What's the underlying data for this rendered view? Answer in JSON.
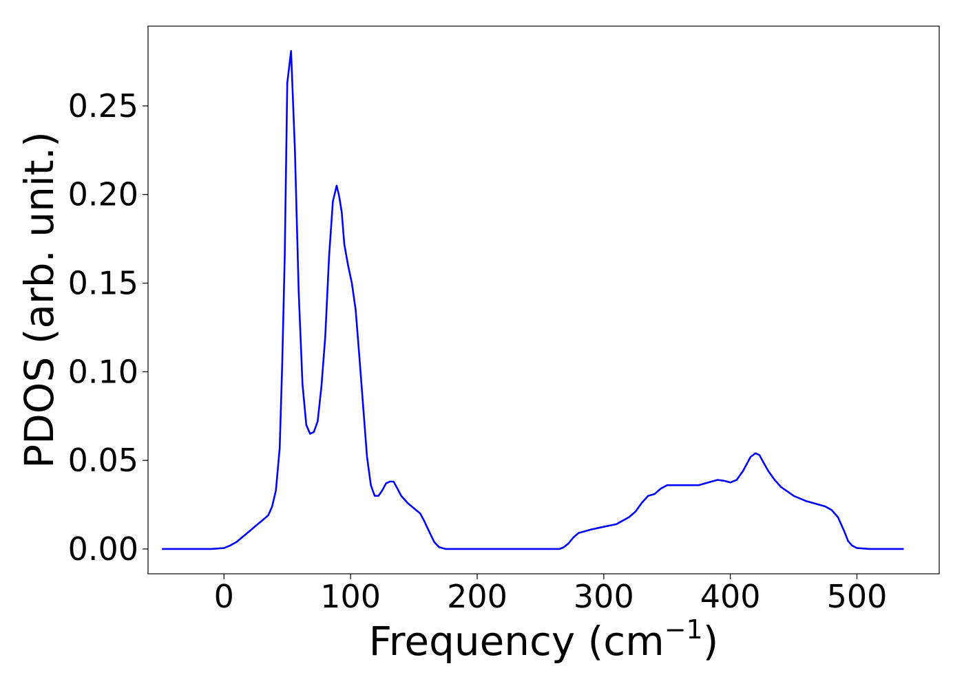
{
  "chart_data": {
    "type": "line",
    "title": "",
    "xlabel": "Frequency (cm",
    "xlabel_sup": "−1",
    "xlabel_close": ")",
    "ylabel": "PDOS (arb. unit.)",
    "xlim": [
      -60,
      565
    ],
    "ylim": [
      -0.014,
      0.295
    ],
    "xticks": [
      0,
      100,
      200,
      300,
      400,
      500
    ],
    "xtick_labels": [
      "0",
      "100",
      "200",
      "300",
      "400",
      "500"
    ],
    "yticks": [
      0.0,
      0.05,
      0.1,
      0.15,
      0.2,
      0.25
    ],
    "ytick_labels": [
      "0.00",
      "0.05",
      "0.10",
      "0.15",
      "0.20",
      "0.25"
    ],
    "grid": false,
    "legend": "none",
    "series": [
      {
        "color": "#0000ff",
        "x": [
          -49,
          -10,
          0,
          5,
          10,
          15,
          20,
          25,
          30,
          35,
          38,
          41,
          44,
          46,
          48,
          50,
          53,
          56,
          59,
          62,
          65,
          68,
          71,
          74,
          77,
          80,
          83,
          86,
          89,
          91,
          93,
          95,
          98,
          101,
          104,
          107,
          110,
          113,
          116,
          119,
          122,
          125,
          128,
          131,
          134,
          137,
          140,
          145,
          150,
          155,
          158,
          162,
          166,
          170,
          175,
          180,
          200,
          250,
          265,
          268,
          272,
          276,
          280,
          285,
          290,
          300,
          310,
          320,
          325,
          330,
          335,
          340,
          345,
          350,
          355,
          360,
          365,
          370,
          375,
          380,
          385,
          390,
          395,
          400,
          405,
          410,
          413,
          416,
          420,
          423,
          426,
          430,
          435,
          440,
          450,
          460,
          470,
          475,
          480,
          485,
          490,
          493,
          496,
          500,
          510,
          537
        ],
        "y": [
          0.0,
          0.0,
          0.0005,
          0.002,
          0.004,
          0.007,
          0.01,
          0.013,
          0.016,
          0.019,
          0.024,
          0.033,
          0.057,
          0.105,
          0.165,
          0.263,
          0.281,
          0.225,
          0.145,
          0.093,
          0.07,
          0.065,
          0.066,
          0.072,
          0.092,
          0.12,
          0.165,
          0.196,
          0.205,
          0.199,
          0.19,
          0.172,
          0.16,
          0.15,
          0.135,
          0.108,
          0.08,
          0.052,
          0.036,
          0.03,
          0.03,
          0.033,
          0.037,
          0.038,
          0.038,
          0.034,
          0.03,
          0.026,
          0.023,
          0.02,
          0.016,
          0.01,
          0.004,
          0.001,
          0.0,
          0.0,
          0.0,
          0.0,
          0.0,
          0.0008,
          0.003,
          0.0065,
          0.009,
          0.01,
          0.011,
          0.0125,
          0.014,
          0.018,
          0.021,
          0.026,
          0.03,
          0.031,
          0.034,
          0.036,
          0.036,
          0.036,
          0.036,
          0.036,
          0.036,
          0.037,
          0.038,
          0.039,
          0.0385,
          0.0375,
          0.039,
          0.044,
          0.048,
          0.052,
          0.054,
          0.053,
          0.049,
          0.044,
          0.039,
          0.035,
          0.03,
          0.027,
          0.025,
          0.024,
          0.022,
          0.018,
          0.01,
          0.0045,
          0.002,
          0.0005,
          0.0,
          0.0
        ]
      }
    ]
  }
}
